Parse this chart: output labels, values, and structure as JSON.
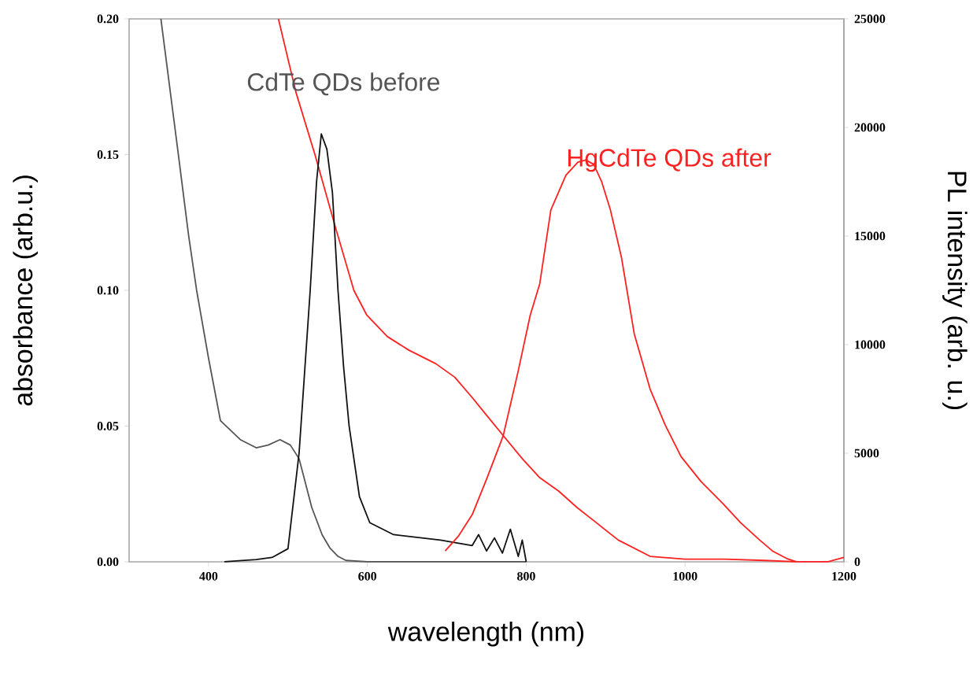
{
  "chart_data": {
    "type": "line",
    "xlabel": "wavelength (nm)",
    "ylabel": "absorbance (arb.u.)",
    "y2label": "PL intensity (arb. u.)",
    "xlim": [
      300,
      1200
    ],
    "xticks": [
      400,
      600,
      800,
      1000,
      1200
    ],
    "ylim": [
      0,
      0.2
    ],
    "yticks": [
      {
        "value": 0,
        "label": "0.00"
      },
      {
        "value": 0.05,
        "label": "0.05"
      },
      {
        "value": 0.1,
        "label": "0.10"
      },
      {
        "value": 0.15,
        "label": "0.15"
      },
      {
        "value": 0.2,
        "label": "0.20"
      }
    ],
    "y2lim": [
      0,
      25000
    ],
    "y2ticks": [
      0,
      5000,
      10000,
      15000,
      20000,
      25000
    ],
    "series": [
      {
        "color": "#555555",
        "axis": "y",
        "x": [
          340,
          362,
          375,
          385,
          400,
          415,
          440,
          460,
          475,
          490,
          503,
          514,
          530,
          543,
          553,
          563,
          573,
          600,
          650,
          700,
          750,
          800
        ],
        "values": [
          0.2,
          0.15,
          0.12,
          0.1,
          0.075,
          0.052,
          0.045,
          0.042,
          0.043,
          0.045,
          0.043,
          0.038,
          0.02,
          0.01,
          0.005,
          0.002,
          0.0005,
          0,
          0,
          0,
          0,
          0
        ]
      },
      {
        "color": "#111111",
        "axis": "y2",
        "x": [
          420,
          460,
          480,
          500,
          514,
          528,
          536,
          542,
          549,
          556,
          563,
          570,
          577,
          590,
          603,
          633,
          692,
          732,
          740,
          750,
          760,
          770,
          780,
          790,
          795,
          800
        ],
        "values": [
          0,
          100,
          200,
          600,
          5000,
          12500,
          17500,
          19700,
          19000,
          17000,
          12500,
          9000,
          6250,
          3000,
          1800,
          1250,
          1000,
          750,
          1250,
          500,
          1100,
          400,
          1500,
          250,
          1000,
          0
        ]
      },
      {
        "color": "#ff2020",
        "axis": "y",
        "x": [
          488,
          510,
          534,
          560,
          583,
          599,
          625,
          652,
          686,
          710,
          732,
          750,
          771,
          795,
          817,
          841,
          864,
          890,
          916,
          956,
          1000,
          1050,
          1100,
          1140
        ],
        "values": [
          0.2,
          0.173,
          0.15,
          0.123,
          0.1,
          0.091,
          0.083,
          0.078,
          0.073,
          0.068,
          0.0605,
          0.054,
          0.0465,
          0.038,
          0.031,
          0.026,
          0.02,
          0.014,
          0.008,
          0.002,
          0.001,
          0.001,
          0.0005,
          0
        ]
      },
      {
        "color": "#ff2020",
        "axis": "y2",
        "x": [
          698,
          715,
          732,
          750,
          771,
          790,
          805,
          817,
          831,
          850,
          865,
          875,
          885,
          895,
          906,
          920,
          936,
          956,
          975,
          995,
          1020,
          1048,
          1070,
          1094,
          1110,
          1128,
          1140,
          1160,
          1180,
          1200
        ],
        "values": [
          500,
          1200,
          2170,
          3800,
          5800,
          8800,
          11350,
          12800,
          16200,
          17800,
          18400,
          18500,
          18300,
          17500,
          16200,
          14000,
          10500,
          7950,
          6300,
          4840,
          3700,
          2670,
          1800,
          1000,
          500,
          150,
          0,
          0,
          0,
          200
        ]
      }
    ],
    "annotations": [
      "CdTe QDs before",
      "HgCdTe QDs after"
    ]
  }
}
